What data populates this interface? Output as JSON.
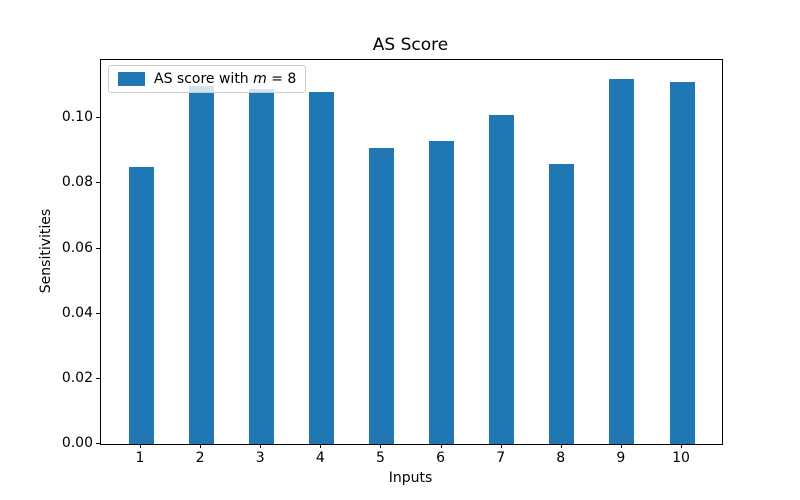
{
  "chart_data": {
    "type": "bar",
    "title": "AS Score",
    "xlabel": "Inputs",
    "ylabel": "Sensitivities",
    "categories": [
      "1",
      "2",
      "3",
      "4",
      "5",
      "6",
      "7",
      "8",
      "9",
      "10"
    ],
    "values": [
      0.085,
      0.11,
      0.109,
      0.108,
      0.091,
      0.093,
      0.101,
      0.086,
      0.112,
      0.111
    ],
    "series_name": "AS score with m = 8",
    "legend": {
      "pre": "AS score with ",
      "var": "m",
      "post": " = 8",
      "position": "upper left"
    },
    "bar_color": "#1f77b4",
    "ylim": [
      0,
      0.1179
    ],
    "yticks": [
      0,
      0.02,
      0.04,
      0.06,
      0.08,
      0.1
    ],
    "ytick_labels": [
      "0.00",
      "0.02",
      "0.04",
      "0.06",
      "0.08",
      "0.10"
    ],
    "grid": false
  }
}
